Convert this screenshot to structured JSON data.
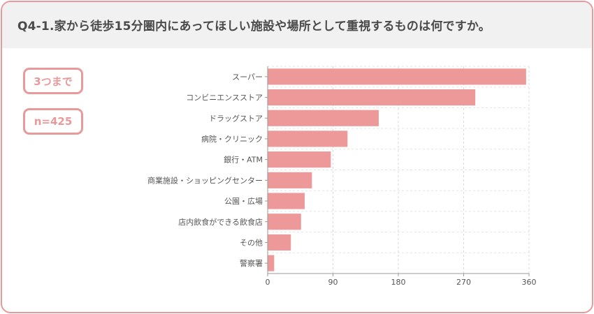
{
  "title": "Q4-1.家から徒歩15分圏内にあってほしい施設や場所として重視するものは何ですか。",
  "badges": {
    "limit": "3つまで",
    "n": "n=425"
  },
  "colors": {
    "accent": "#e89a9a",
    "bar": "#ed9999",
    "header_bg": "#f1f1f1"
  },
  "chart_data": {
    "type": "bar",
    "orientation": "horizontal",
    "categories": [
      "スーパー",
      "コンビニエンスストア",
      "ドラッグストア",
      "病院・クリニック",
      "銀行・ATM",
      "商業施設・ショッピングセンター",
      "公園・広場",
      "店内飲食ができる飲食店",
      "その他",
      "警察署"
    ],
    "values": [
      356,
      286,
      153,
      110,
      87,
      61,
      51,
      46,
      32,
      9
    ],
    "xlim": [
      0,
      360
    ],
    "xticks": [
      0,
      90,
      180,
      270,
      360
    ],
    "grid": true
  }
}
